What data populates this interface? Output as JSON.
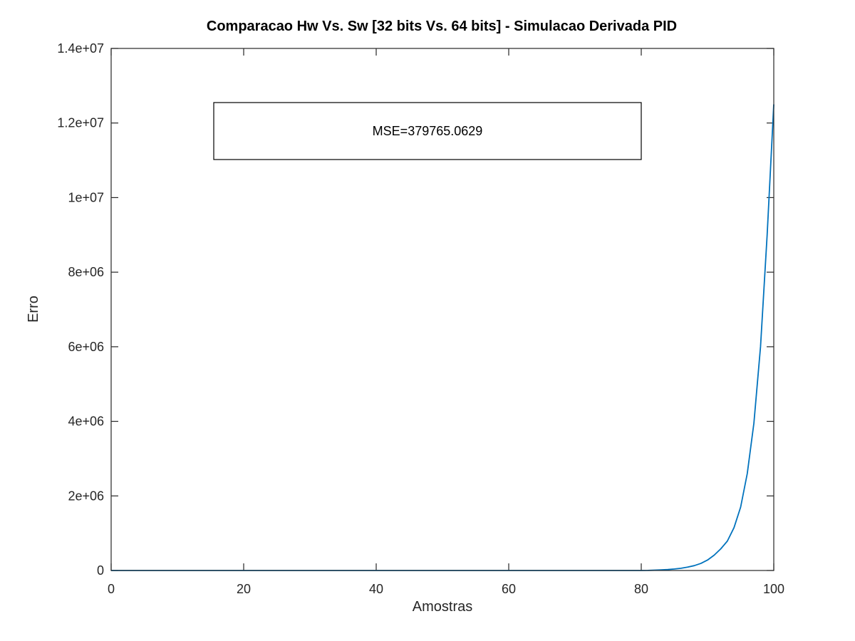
{
  "chart_data": {
    "type": "line",
    "title": "Comparacao Hw Vs. Sw [32 bits Vs. 64 bits] - Simulacao Derivada PID",
    "xlabel": "Amostras",
    "ylabel": "Erro",
    "xlim": [
      0,
      100
    ],
    "ylim": [
      0,
      14000000
    ],
    "xticks": [
      0,
      20,
      40,
      60,
      80,
      100
    ],
    "xtick_labels": [
      "0",
      "20",
      "40",
      "60",
      "80",
      "100"
    ],
    "yticks": [
      0,
      2000000,
      4000000,
      6000000,
      8000000,
      10000000,
      12000000,
      14000000
    ],
    "ytick_labels": [
      "0",
      "2e+06",
      "4e+06",
      "6e+06",
      "8e+06",
      "1e+07",
      "1.2e+07",
      "1.4e+07"
    ],
    "grid": false,
    "annotation": "MSE=379765.0629",
    "series": [
      {
        "color": "#0072BD",
        "x": [
          0,
          10,
          20,
          30,
          40,
          50,
          60,
          70,
          80,
          81,
          82,
          83,
          84,
          85,
          86,
          87,
          88,
          89,
          90,
          91,
          92,
          93,
          94,
          95,
          96,
          97,
          98,
          99,
          100
        ],
        "y": [
          0,
          0,
          0,
          0,
          0,
          0,
          0,
          0,
          0,
          2000,
          8000,
          15000,
          25000,
          40000,
          60000,
          90000,
          130000,
          190000,
          280000,
          410000,
          580000,
          790000,
          1150000,
          1700000,
          2600000,
          3950000,
          6000000,
          9000000,
          12500000
        ]
      }
    ]
  }
}
